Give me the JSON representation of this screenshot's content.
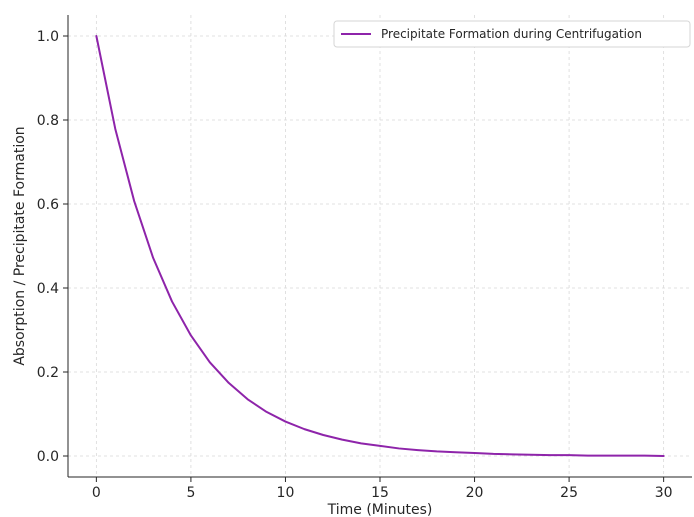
{
  "chart_data": {
    "type": "line",
    "xlabel": "Time (Minutes)",
    "ylabel": "Absorption / Precipitate Formation",
    "xlim": [
      -1.5,
      31.5
    ],
    "ylim": [
      -0.05,
      1.05
    ],
    "xticks": [
      0,
      5,
      10,
      15,
      20,
      25,
      30
    ],
    "xtick_labels": [
      "0",
      "5",
      "10",
      "15",
      "20",
      "25",
      "30"
    ],
    "yticks": [
      0.0,
      0.2,
      0.4,
      0.6,
      0.8,
      1.0
    ],
    "ytick_labels": [
      "0.0",
      "0.2",
      "0.4",
      "0.6",
      "0.8",
      "1.0"
    ],
    "grid": true,
    "grid_style": "dashed",
    "legend_position": "top-right",
    "series": [
      {
        "name": "Precipitate Formation during Centrifugation",
        "color": "#8e24aa",
        "x": [
          0,
          1,
          2,
          3,
          4,
          5,
          6,
          7,
          8,
          9,
          10,
          11,
          12,
          13,
          14,
          15,
          16,
          17,
          18,
          19,
          20,
          21,
          22,
          23,
          24,
          25,
          26,
          27,
          28,
          29,
          30
        ],
        "y": [
          1.0,
          0.779,
          0.607,
          0.472,
          0.368,
          0.287,
          0.223,
          0.174,
          0.135,
          0.105,
          0.082,
          0.064,
          0.05,
          0.039,
          0.03,
          0.024,
          0.018,
          0.014,
          0.011,
          0.009,
          0.007,
          0.005,
          0.004,
          0.003,
          0.002,
          0.002,
          0.001,
          0.001,
          0.001,
          0.001,
          0.0
        ]
      }
    ]
  }
}
